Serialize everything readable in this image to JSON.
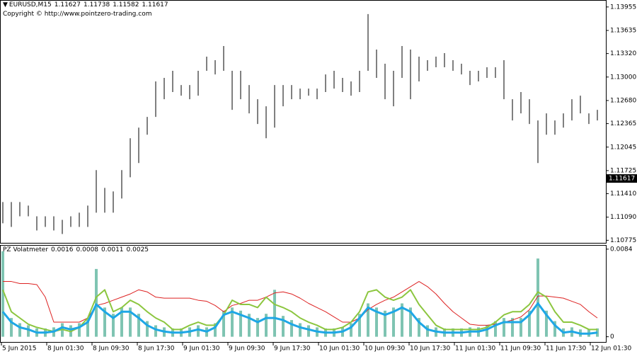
{
  "header": {
    "symbol": "EURUSD,M15",
    "ohlc": [
      1.11627,
      1.11738,
      1.11582,
      1.11617
    ],
    "copyright": "Copyright © http://www.pointzero-trading.com"
  },
  "time_labels": [
    "5 Jun 2015",
    "8 Jun 01:30",
    "8 Jun 09:30",
    "8 Jun 17:30",
    "9 Jun 01:30",
    "9 Jun 09:30",
    "9 Jun 17:30",
    "10 Jun 01:30",
    "10 Jun 09:30",
    "10 Jun 17:30",
    "11 Jun 01:30",
    "11 Jun 09:30",
    "11 Jun 17:30",
    "12 Jun 01:30"
  ],
  "chart_data": [
    {
      "type": "ohlc",
      "color": "#000000",
      "high": [
        1.11296,
        1.11296,
        1.11296,
        1.11248,
        1.11102,
        1.11102,
        1.11102,
        1.11054,
        1.11102,
        1.11151,
        1.11248,
        1.11731,
        1.11489,
        1.11441,
        1.11731,
        1.12166,
        1.12311,
        1.12456,
        1.1294,
        1.12988,
        1.13085,
        1.12891,
        1.12891,
        1.13085,
        1.13278,
        1.1323,
        1.13423,
        1.13085,
        1.13085,
        1.12891,
        1.12698,
        1.12601,
        1.12891,
        1.12891,
        1.12891,
        1.12843,
        1.12843,
        1.12843,
        1.13036,
        1.13085,
        1.12988,
        1.1294,
        1.13085,
        1.13858,
        1.13375,
        1.13181,
        1.13085,
        1.13423,
        1.13375,
        1.13278,
        1.1323,
        1.13278,
        1.13326,
        1.1323,
        1.13181,
        1.13085,
        1.13085,
        1.13133,
        1.13133,
        1.1323,
        1.12698,
        1.12795,
        1.12698,
        1.12408,
        1.12505,
        1.12408,
        1.12505,
        1.12698,
        1.12746,
        1.12505,
        1.12553
      ],
      "low": [
        1.11006,
        1.10957,
        1.11102,
        1.11102,
        1.10909,
        1.10957,
        1.10909,
        1.10861,
        1.10957,
        1.10957,
        1.10957,
        1.11151,
        1.11151,
        1.11151,
        1.11344,
        1.11634,
        1.11828,
        1.12214,
        1.12456,
        1.12698,
        1.12795,
        1.12746,
        1.12698,
        1.12746,
        1.13085,
        1.13036,
        1.13085,
        1.12553,
        1.12698,
        1.12505,
        1.1236,
        1.12166,
        1.12311,
        1.12601,
        1.12698,
        1.12698,
        1.12746,
        1.12698,
        1.12795,
        1.12843,
        1.12795,
        1.12746,
        1.12795,
        1.13085,
        1.12988,
        1.12698,
        1.12601,
        1.12988,
        1.12698,
        1.1294,
        1.13085,
        1.13133,
        1.13133,
        1.13085,
        1.13036,
        1.12891,
        1.1294,
        1.12988,
        1.12988,
        1.12698,
        1.12408,
        1.12505,
        1.1236,
        1.11828,
        1.12214,
        1.12214,
        1.12311,
        1.12408,
        1.12505,
        1.1236,
        1.12408
      ],
      "ylim": [
        1.1074,
        1.1405
      ],
      "yticks": [
        1.13955,
        1.13635,
        {
          "value": 1.1332,
          "label": "1.13320"
        },
        {
          "value": 1.13,
          "label": "1.13000"
        },
        {
          "value": 1.1268,
          "label": "1.12680"
        },
        1.12365,
        1.12045,
        1.11725,
        {
          "value": 1.1141,
          "label": "1.11410"
        },
        {
          "value": 1.1109,
          "label": "1.11090"
        },
        1.10775
      ]
    },
    {
      "type": "indicator",
      "title": "PZ Volatmeter",
      "legend_values": [
        0.0016,
        0.0008,
        0.0011,
        0.0025
      ],
      "ylim": [
        -0.0005,
        0.0088
      ],
      "yticks": [
        0.0084,
        0
      ],
      "series": [
        {
          "kind": "bars",
          "color": "#7fc4b2",
          "values": [
            0.0082,
            0.0018,
            0.0013,
            0.0011,
            0.0008,
            0.0008,
            0.0009,
            0.0013,
            0.0011,
            0.0013,
            0.0018,
            0.0065,
            0.0028,
            0.0022,
            0.0028,
            0.0028,
            0.0022,
            0.0015,
            0.0011,
            0.0009,
            0.0008,
            0.0008,
            0.0009,
            0.0011,
            0.0009,
            0.0013,
            0.0025,
            0.0028,
            0.0025,
            0.0022,
            0.0018,
            0.0022,
            0.0045,
            0.002,
            0.0016,
            0.0013,
            0.0011,
            0.0009,
            0.0008,
            0.0008,
            0.0009,
            0.0013,
            0.0022,
            0.0032,
            0.0028,
            0.0025,
            0.0028,
            0.0032,
            0.0028,
            0.0018,
            0.0011,
            0.0009,
            0.0008,
            0.0008,
            0.0008,
            0.0009,
            0.0009,
            0.0011,
            0.0015,
            0.0018,
            0.0018,
            0.0018,
            0.0025,
            0.0075,
            0.0025,
            0.0015,
            0.0008,
            0.0009,
            0.0007,
            0.0007,
            0.0008
          ]
        },
        {
          "kind": "line",
          "color": "#dd2222",
          "width": 1,
          "values": [
            0.0053,
            0.0053,
            0.0051,
            0.0051,
            0.005,
            0.0038,
            0.0014,
            0.0014,
            0.0014,
            0.0014,
            0.0018,
            0.003,
            0.0032,
            0.0035,
            0.0038,
            0.0041,
            0.0045,
            0.0043,
            0.0038,
            0.0037,
            0.0037,
            0.0037,
            0.0037,
            0.0035,
            0.0034,
            0.003,
            0.0024,
            0.003,
            0.0032,
            0.0035,
            0.0035,
            0.0038,
            0.0042,
            0.0043,
            0.0041,
            0.0037,
            0.0032,
            0.0028,
            0.0024,
            0.0019,
            0.0014,
            0.0014,
            0.0018,
            0.0026,
            0.0031,
            0.0035,
            0.0038,
            0.0043,
            0.0048,
            0.0053,
            0.0048,
            0.0041,
            0.0032,
            0.0024,
            0.0018,
            0.0012,
            0.0011,
            0.0011,
            0.0012,
            0.0014,
            0.0016,
            0.0019,
            0.0026,
            0.0039,
            0.0039,
            0.0038,
            0.0037,
            0.0034,
            0.0031,
            0.0024,
            0.0018
          ]
        },
        {
          "kind": "line",
          "color": "#8cc63f",
          "width": 2,
          "values": [
            0.0045,
            0.0024,
            0.0018,
            0.0012,
            0.0009,
            0.0007,
            0.0005,
            0.0007,
            0.0005,
            0.0009,
            0.0018,
            0.0038,
            0.0045,
            0.0024,
            0.0028,
            0.0035,
            0.0031,
            0.0024,
            0.0018,
            0.0014,
            0.0007,
            0.0007,
            0.0011,
            0.0014,
            0.0011,
            0.0011,
            0.0021,
            0.0035,
            0.0031,
            0.0031,
            0.0028,
            0.0038,
            0.0031,
            0.0028,
            0.0024,
            0.0018,
            0.0014,
            0.0011,
            0.0007,
            0.0007,
            0.0009,
            0.0014,
            0.0024,
            0.0043,
            0.0045,
            0.0038,
            0.0035,
            0.0038,
            0.0045,
            0.0031,
            0.0021,
            0.0011,
            0.0007,
            0.0007,
            0.0007,
            0.0007,
            0.0007,
            0.0009,
            0.0014,
            0.0021,
            0.0024,
            0.0024,
            0.0031,
            0.0043,
            0.0038,
            0.0024,
            0.0014,
            0.0014,
            0.0011,
            0.0007,
            0.0007
          ]
        },
        {
          "kind": "line",
          "color": "#1ea7e6",
          "width": 3,
          "values": [
            0.0024,
            0.0014,
            0.0009,
            0.0007,
            0.0004,
            0.0004,
            0.0005,
            0.0009,
            0.0007,
            0.0009,
            0.0014,
            0.0031,
            0.0024,
            0.0018,
            0.0024,
            0.0024,
            0.0018,
            0.0011,
            0.0007,
            0.0005,
            0.0004,
            0.0004,
            0.0005,
            0.0007,
            0.0005,
            0.0009,
            0.0021,
            0.0024,
            0.0021,
            0.0018,
            0.0014,
            0.0018,
            0.0018,
            0.0016,
            0.0012,
            0.0009,
            0.0007,
            0.0005,
            0.0004,
            0.0004,
            0.0005,
            0.0009,
            0.0018,
            0.0028,
            0.0024,
            0.0021,
            0.0024,
            0.0028,
            0.0024,
            0.0014,
            0.0007,
            0.0005,
            0.0004,
            0.0004,
            0.0004,
            0.0005,
            0.0005,
            0.0007,
            0.0011,
            0.0014,
            0.0014,
            0.0014,
            0.0021,
            0.0032,
            0.0021,
            0.0011,
            0.0004,
            0.0005,
            0.0003,
            0.0003,
            0.0004
          ]
        }
      ]
    }
  ]
}
